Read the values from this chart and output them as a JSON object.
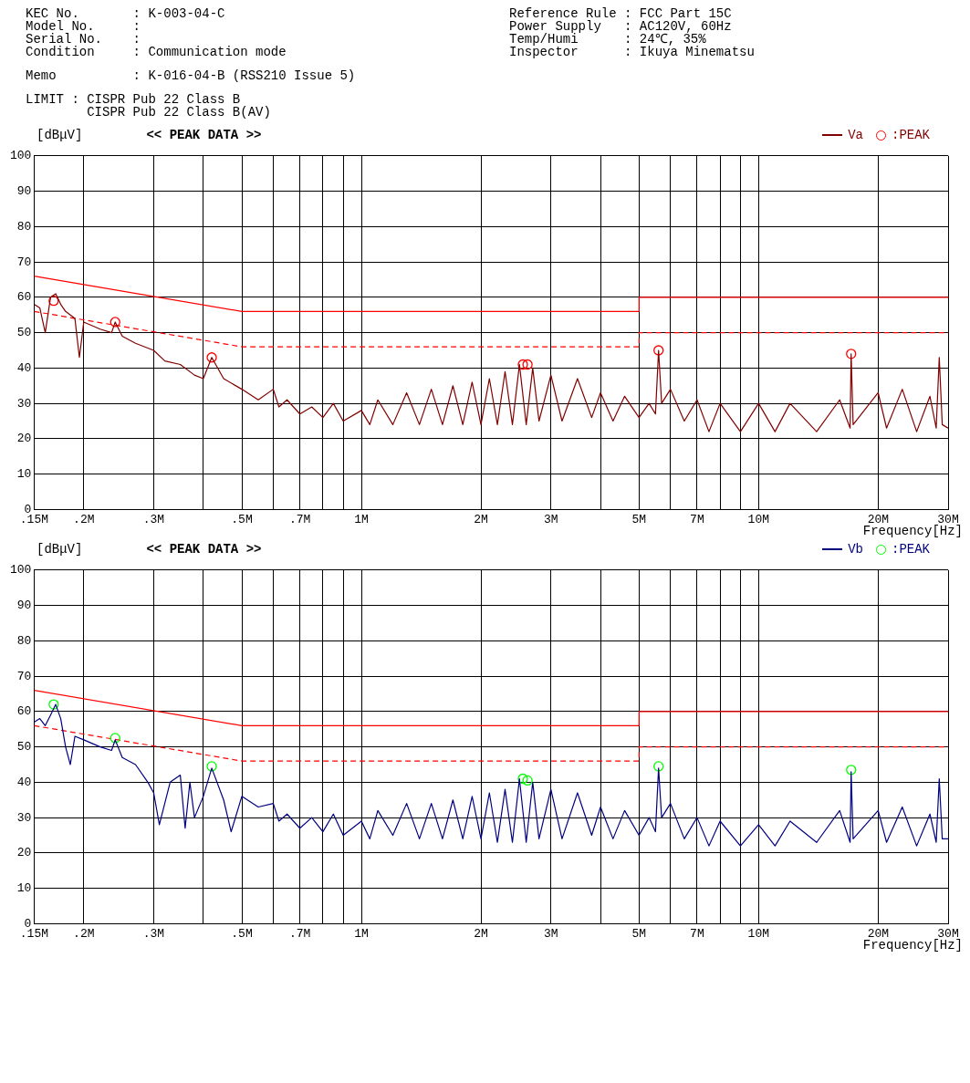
{
  "chart_data": [
    {
      "type": "line",
      "title": "<< PEAK DATA >>",
      "ylabel": "[dBμV]",
      "xlabel": "Frequency[Hz]",
      "annotations": [
        "KEC No.       : K-003-04-C",
        "Model No.     :",
        "Serial No.    :",
        "Condition     : Communication mode",
        "Reference Rule : FCC Part 15C",
        "Power Supply   : AC120V, 60Hz",
        "Temp/Humi      : 24℃, 35%",
        "Inspector      : Ikuya Minematsu",
        "Memo          : K-016-04-B (RSS210 Issue 5)",
        "LIMIT : CISPR Pub 22 Class B\n        CISPR Pub 22 Class B(AV)"
      ],
      "log": "x",
      "xlim": [
        0.15,
        30
      ],
      "ylim": [
        0,
        100
      ],
      "yticks": [
        0,
        10,
        20,
        30,
        40,
        50,
        60,
        70,
        80,
        90,
        100
      ],
      "xticks": [
        {
          "value": 0.15,
          "label": ".15M"
        },
        {
          "value": 0.2,
          "label": ".2M"
        },
        {
          "value": 0.3,
          "label": ".3M"
        },
        {
          "value": 0.4,
          "label": null
        },
        {
          "value": 0.5,
          "label": ".5M"
        },
        {
          "value": 0.6,
          "label": null
        },
        {
          "value": 0.7,
          "label": ".7M"
        },
        {
          "value": 0.8,
          "label": null
        },
        {
          "value": 0.9,
          "label": null
        },
        {
          "value": 1,
          "label": "1M"
        },
        {
          "value": 2,
          "label": "2M"
        },
        {
          "value": 3,
          "label": "3M"
        },
        {
          "value": 4,
          "label": null
        },
        {
          "value": 5,
          "label": "5M"
        },
        {
          "value": 6,
          "label": null
        },
        {
          "value": 7,
          "label": "7M"
        },
        {
          "value": 8,
          "label": null
        },
        {
          "value": 9,
          "label": null
        },
        {
          "value": 10,
          "label": "10M"
        },
        {
          "value": 20,
          "label": "20M"
        },
        {
          "value": 30,
          "label": "30M"
        }
      ],
      "grid": true,
      "legend": "top right",
      "series": [
        {
          "name": "Va",
          "type": "line",
          "color": "#800000",
          "x": [
            0.15,
            0.155,
            0.16,
            0.165,
            0.17,
            0.175,
            0.18,
            0.19,
            0.195,
            0.2,
            0.22,
            0.235,
            0.24,
            0.25,
            0.27,
            0.3,
            0.32,
            0.35,
            0.38,
            0.4,
            0.42,
            0.45,
            0.5,
            0.55,
            0.6,
            0.62,
            0.65,
            0.7,
            0.75,
            0.8,
            0.85,
            0.9,
            1,
            1.05,
            1.1,
            1.2,
            1.3,
            1.4,
            1.5,
            1.6,
            1.7,
            1.8,
            1.9,
            2,
            2.1,
            2.2,
            2.3,
            2.4,
            2.5,
            2.6,
            2.7,
            2.8,
            3,
            3.2,
            3.5,
            3.8,
            4,
            4.3,
            4.6,
            5,
            5.3,
            5.5,
            5.6,
            5.7,
            6,
            6.5,
            7,
            7.5,
            8,
            9,
            10,
            11,
            12,
            14,
            16,
            17,
            17.1,
            17.3,
            20,
            21,
            23,
            25,
            27,
            28,
            28.5,
            29,
            30
          ],
          "values": [
            58,
            57,
            50,
            60,
            61,
            58,
            56,
            54,
            43,
            53,
            51,
            50,
            53,
            49,
            47,
            45,
            42,
            41,
            38,
            37,
            43,
            37,
            34,
            31,
            34,
            29,
            31,
            27,
            29,
            26,
            30,
            25,
            28,
            24,
            31,
            24,
            33,
            24,
            34,
            24,
            35,
            24,
            36,
            24,
            37,
            24,
            39,
            24,
            41,
            24,
            40,
            25,
            38,
            25,
            37,
            26,
            33,
            25,
            32,
            26,
            30,
            27,
            45,
            30,
            34,
            25,
            31,
            22,
            30,
            22,
            30,
            22,
            30,
            22,
            31,
            23,
            44,
            24,
            33,
            23,
            34,
            22,
            32,
            23,
            43,
            24,
            23
          ]
        },
        {
          "name": ":PEAK",
          "type": "scatter",
          "marker": "circle",
          "color": "#ff0000",
          "x": [
            0.168,
            0.24,
            0.42,
            2.55,
            2.62,
            5.6,
            17.1
          ],
          "values": [
            59,
            53,
            43,
            41,
            41,
            45,
            44
          ]
        },
        {
          "type": "line",
          "color": "#ff0000",
          "line_style": "solid",
          "x": [
            0.15,
            0.5,
            0.5,
            5,
            5,
            30
          ],
          "values": [
            66,
            56,
            56,
            56,
            60,
            60
          ]
        },
        {
          "type": "line",
          "color": "#ff0000",
          "line_style": "dashed",
          "x": [
            0.15,
            0.5,
            0.5,
            5,
            5,
            30
          ],
          "values": [
            56,
            46,
            46,
            46,
            50,
            50
          ]
        }
      ]
    },
    {
      "type": "line",
      "title": "<< PEAK DATA >>",
      "ylabel": "[dBμV]",
      "xlabel": "Frequency[Hz]",
      "log": "x",
      "xlim": [
        0.15,
        30
      ],
      "ylim": [
        0,
        100
      ],
      "yticks": [
        0,
        10,
        20,
        30,
        40,
        50,
        60,
        70,
        80,
        90,
        100
      ],
      "xticks": [
        {
          "value": 0.15,
          "label": ".15M"
        },
        {
          "value": 0.2,
          "label": ".2M"
        },
        {
          "value": 0.3,
          "label": ".3M"
        },
        {
          "value": 0.4,
          "label": null
        },
        {
          "value": 0.5,
          "label": ".5M"
        },
        {
          "value": 0.6,
          "label": null
        },
        {
          "value": 0.7,
          "label": ".7M"
        },
        {
          "value": 0.8,
          "label": null
        },
        {
          "value": 0.9,
          "label": null
        },
        {
          "value": 1,
          "label": "1M"
        },
        {
          "value": 2,
          "label": "2M"
        },
        {
          "value": 3,
          "label": "3M"
        },
        {
          "value": 4,
          "label": null
        },
        {
          "value": 5,
          "label": "5M"
        },
        {
          "value": 6,
          "label": null
        },
        {
          "value": 7,
          "label": "7M"
        },
        {
          "value": 8,
          "label": null
        },
        {
          "value": 9,
          "label": null
        },
        {
          "value": 10,
          "label": "10M"
        },
        {
          "value": 20,
          "label": "20M"
        },
        {
          "value": 30,
          "label": "30M"
        }
      ],
      "grid": true,
      "legend": "top right",
      "series": [
        {
          "name": "Vb",
          "type": "line",
          "color": "#000080",
          "x": [
            0.15,
            0.155,
            0.16,
            0.165,
            0.17,
            0.175,
            0.18,
            0.185,
            0.19,
            0.2,
            0.22,
            0.235,
            0.24,
            0.25,
            0.27,
            0.29,
            0.3,
            0.31,
            0.33,
            0.35,
            0.36,
            0.37,
            0.38,
            0.4,
            0.42,
            0.45,
            0.47,
            0.5,
            0.55,
            0.6,
            0.62,
            0.65,
            0.7,
            0.75,
            0.8,
            0.85,
            0.9,
            1,
            1.05,
            1.1,
            1.2,
            1.3,
            1.4,
            1.5,
            1.6,
            1.7,
            1.8,
            1.9,
            2,
            2.1,
            2.2,
            2.3,
            2.4,
            2.5,
            2.6,
            2.7,
            2.8,
            3,
            3.2,
            3.5,
            3.8,
            4,
            4.3,
            4.6,
            5,
            5.3,
            5.5,
            5.6,
            5.7,
            6,
            6.5,
            7,
            7.5,
            8,
            9,
            10,
            11,
            12,
            14,
            16,
            17,
            17.1,
            17.3,
            20,
            21,
            23,
            25,
            27,
            28,
            28.5,
            29,
            30
          ],
          "values": [
            57,
            58,
            56,
            59,
            62,
            58,
            50,
            45,
            53,
            52,
            50,
            49,
            52,
            47,
            45,
            40,
            37,
            28,
            40,
            42,
            27,
            40,
            30,
            36,
            44,
            35,
            26,
            36,
            33,
            34,
            29,
            31,
            27,
            30,
            26,
            31,
            25,
            29,
            24,
            32,
            25,
            34,
            24,
            34,
            24,
            35,
            24,
            36,
            24,
            37,
            23,
            38,
            23,
            41,
            23,
            40,
            24,
            38,
            24,
            37,
            25,
            33,
            24,
            32,
            25,
            30,
            26,
            44,
            30,
            34,
            24,
            30,
            22,
            29,
            22,
            28,
            22,
            29,
            23,
            32,
            23,
            43,
            24,
            32,
            23,
            33,
            22,
            31,
            23,
            41,
            24,
            24
          ]
        },
        {
          "name": ":PEAK",
          "type": "scatter",
          "marker": "circle",
          "color": "#00ff00",
          "x": [
            0.168,
            0.24,
            0.42,
            2.55,
            2.62,
            5.6,
            17.1
          ],
          "values": [
            62,
            52.5,
            44.5,
            41,
            40.5,
            44.5,
            43.5
          ]
        },
        {
          "type": "line",
          "color": "#ff0000",
          "line_style": "solid",
          "x": [
            0.15,
            0.5,
            0.5,
            5,
            5,
            30
          ],
          "values": [
            66,
            56,
            56,
            56,
            60,
            60
          ]
        },
        {
          "type": "line",
          "color": "#ff0000",
          "line_style": "dashed",
          "x": [
            0.15,
            0.5,
            0.5,
            5,
            5,
            30
          ],
          "values": [
            56,
            46,
            46,
            46,
            50,
            50
          ]
        }
      ]
    }
  ]
}
